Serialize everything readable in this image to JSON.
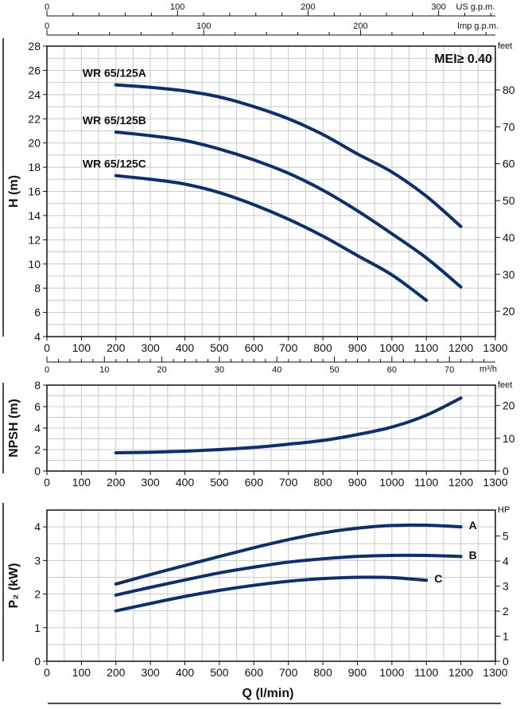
{
  "top_scales": {
    "usgpm": {
      "unit": "US g.p.m.",
      "ticks": [
        {
          "v": 0,
          "label": "0"
        },
        {
          "v": 100,
          "label": "100"
        },
        {
          "v": 200,
          "label": "200"
        },
        {
          "v": 300,
          "label": "300"
        }
      ]
    },
    "impgpm": {
      "unit": "Imp g.p.m.",
      "ticks": [
        {
          "v": 0,
          "label": "0"
        },
        {
          "v": 100,
          "label": "100"
        },
        {
          "v": 200,
          "label": "200"
        }
      ]
    }
  },
  "m3h_scale": {
    "unit": "m³/h",
    "ticks": [
      {
        "v": 0,
        "label": "0"
      },
      {
        "v": 10,
        "label": "10"
      },
      {
        "v": 20,
        "label": "20"
      },
      {
        "v": 30,
        "label": "30"
      },
      {
        "v": 40,
        "label": "40"
      },
      {
        "v": 50,
        "label": "50"
      },
      {
        "v": 60,
        "label": "60"
      },
      {
        "v": 70,
        "label": "70"
      }
    ]
  },
  "chart_data": [
    {
      "type": "line",
      "id": "head",
      "ylabel": "H (m)",
      "y2label": "feet",
      "xlim": [
        0,
        1300
      ],
      "ylim": [
        4,
        28
      ],
      "x_ticks": [
        "0",
        "100",
        "200",
        "300",
        "400",
        "500",
        "600",
        "700",
        "800",
        "900",
        "1000",
        "1100",
        "1200",
        "1300"
      ],
      "y_ticks": [
        "4",
        "6",
        "8",
        "10",
        "12",
        "14",
        "16",
        "18",
        "20",
        "22",
        "24",
        "26",
        "28"
      ],
      "y2_ticks": [
        "20",
        "30",
        "40",
        "50",
        "60",
        "70",
        "80"
      ],
      "annotation": "MEI≥ 0.40",
      "series": [
        {
          "name": "WR 65/125A",
          "x": [
            200,
            300,
            400,
            500,
            600,
            700,
            800,
            900,
            1000,
            1100,
            1200
          ],
          "y": [
            24.8,
            24.6,
            24.3,
            23.8,
            23.0,
            22.0,
            20.7,
            19.1,
            17.6,
            15.6,
            13.1
          ]
        },
        {
          "name": "WR 65/125B",
          "x": [
            200,
            300,
            400,
            500,
            600,
            700,
            800,
            900,
            1000,
            1100,
            1200
          ],
          "y": [
            20.9,
            20.6,
            20.2,
            19.5,
            18.6,
            17.5,
            16.1,
            14.4,
            12.5,
            10.5,
            8.1
          ]
        },
        {
          "name": "WR 65/125C",
          "x": [
            200,
            300,
            400,
            500,
            600,
            700,
            800,
            900,
            1000,
            1100
          ],
          "y": [
            17.3,
            17.0,
            16.6,
            15.9,
            14.9,
            13.7,
            12.3,
            10.7,
            9.1,
            7.0
          ]
        }
      ]
    },
    {
      "type": "line",
      "id": "npsh",
      "ylabel": "NPSH (m)",
      "y2label": "feet",
      "xlim": [
        0,
        1300
      ],
      "ylim": [
        0,
        8
      ],
      "x_ticks": [
        "0",
        "100",
        "200",
        "300",
        "400",
        "500",
        "600",
        "700",
        "800",
        "900",
        "1000",
        "1100",
        "1200",
        "1300"
      ],
      "y_ticks": [
        "0",
        "2",
        "4",
        "6",
        "8"
      ],
      "y2_ticks": [
        "0",
        "10",
        "20"
      ],
      "series": [
        {
          "x": [
            200,
            300,
            400,
            500,
            600,
            700,
            800,
            900,
            1000,
            1100,
            1200
          ],
          "y": [
            1.7,
            1.75,
            1.85,
            2.0,
            2.2,
            2.5,
            2.85,
            3.4,
            4.1,
            5.2,
            6.8
          ]
        }
      ]
    },
    {
      "type": "line",
      "id": "power",
      "ylabel": "P₂ (kW)",
      "xlabel": "Q (l/min)",
      "y2label": "HP",
      "xlim": [
        0,
        1300
      ],
      "ylim": [
        0,
        4.5
      ],
      "x_ticks": [
        "0",
        "100",
        "200",
        "300",
        "400",
        "500",
        "600",
        "700",
        "800",
        "900",
        "1000",
        "1100",
        "1200",
        "1300"
      ],
      "y_ticks": [
        "0",
        "1",
        "2",
        "3",
        "4"
      ],
      "y2_ticks": [
        "0",
        "1",
        "2",
        "3",
        "4",
        "5"
      ],
      "series": [
        {
          "name": "A",
          "x": [
            200,
            300,
            400,
            500,
            600,
            700,
            800,
            900,
            1000,
            1100,
            1200
          ],
          "y": [
            2.3,
            2.58,
            2.85,
            3.12,
            3.38,
            3.62,
            3.82,
            3.96,
            4.04,
            4.05,
            4.0
          ]
        },
        {
          "name": "B",
          "x": [
            200,
            300,
            400,
            500,
            600,
            700,
            800,
            900,
            1000,
            1100,
            1200
          ],
          "y": [
            1.97,
            2.2,
            2.42,
            2.63,
            2.8,
            2.95,
            3.05,
            3.12,
            3.15,
            3.15,
            3.12
          ]
        },
        {
          "name": "C",
          "x": [
            200,
            300,
            400,
            500,
            600,
            700,
            800,
            900,
            1000,
            1100
          ],
          "y": [
            1.5,
            1.72,
            1.93,
            2.11,
            2.26,
            2.38,
            2.46,
            2.5,
            2.49,
            2.41
          ]
        }
      ]
    }
  ]
}
